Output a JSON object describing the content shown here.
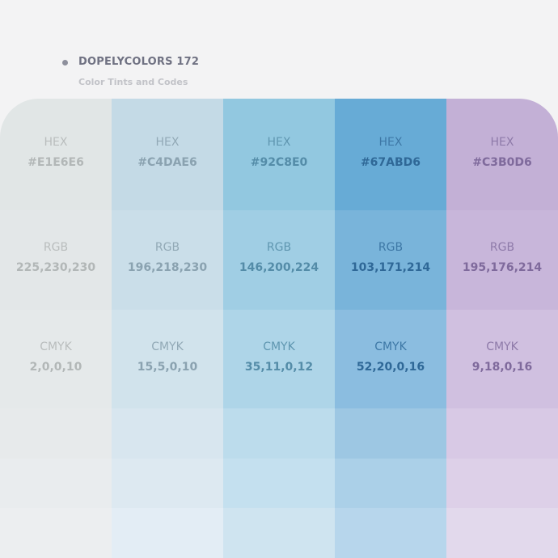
{
  "header": {
    "title": "DOPELYCOLORS 172",
    "subtitle": "Color Tints and Codes"
  },
  "columns": [
    {
      "hex_label": "HEX",
      "hex": "#E1E6E6",
      "rgb_label": "RGB",
      "rgb": "225,230,230",
      "cmyk_label": "CMYK",
      "cmyk": "2,0,0,10"
    },
    {
      "hex_label": "HEX",
      "hex": "#C4DAE6",
      "rgb_label": "RGB",
      "rgb": "196,218,230",
      "cmyk_label": "CMYK",
      "cmyk": "15,5,0,10"
    },
    {
      "hex_label": "HEX",
      "hex": "#92C8E0",
      "rgb_label": "RGB",
      "rgb": "146,200,224",
      "cmyk_label": "CMYK",
      "cmyk": "35,11,0,12"
    },
    {
      "hex_label": "HEX",
      "hex": "#67ABD6",
      "rgb_label": "RGB",
      "rgb": "103,171,214",
      "cmyk_label": "CMYK",
      "cmyk": "52,20,0,16"
    },
    {
      "hex_label": "HEX",
      "hex": "#C3B0D6",
      "rgb_label": "RGB",
      "rgb": "195,176,214",
      "cmyk_label": "CMYK",
      "cmyk": "9,18,0,16"
    }
  ]
}
